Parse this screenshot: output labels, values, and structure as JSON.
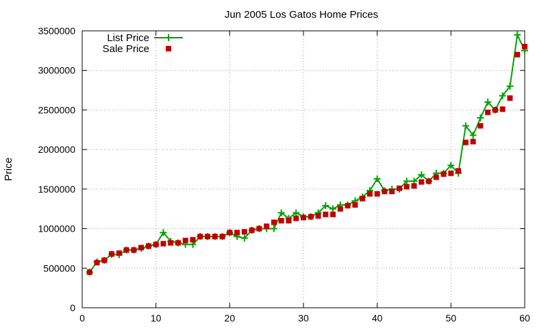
{
  "chart_data": {
    "type": "line",
    "title": "Jun 2005 Los Gatos Home Prices",
    "xlabel": "",
    "ylabel": "Price",
    "xlim": [
      0,
      60
    ],
    "ylim": [
      0,
      3500000
    ],
    "x_ticks": [
      0,
      10,
      20,
      30,
      40,
      50,
      60
    ],
    "y_ticks": [
      0,
      500000,
      1000000,
      1500000,
      2000000,
      2500000,
      3000000,
      3500000
    ],
    "x_tick_labels": [
      "0",
      "10",
      "20",
      "30",
      "40",
      "50",
      "60"
    ],
    "y_tick_labels": [
      "0",
      "500000",
      "1000000",
      "1500000",
      "2000000",
      "2500000",
      "3000000",
      "3500000"
    ],
    "grid": true,
    "legend_position": "top-left",
    "series": [
      {
        "name": "List Price",
        "style": "lines+points",
        "color": "#00a000",
        "x": [
          1,
          2,
          3,
          4,
          5,
          6,
          7,
          8,
          9,
          10,
          11,
          12,
          13,
          14,
          15,
          16,
          17,
          18,
          19,
          20,
          21,
          22,
          23,
          24,
          25,
          26,
          27,
          28,
          29,
          30,
          31,
          32,
          33,
          34,
          35,
          36,
          37,
          38,
          39,
          40,
          41,
          42,
          43,
          44,
          45,
          46,
          47,
          48,
          49,
          50,
          51,
          52,
          53,
          54,
          55,
          56,
          57,
          58,
          59,
          60
        ],
        "y": [
          450000,
          580000,
          600000,
          675000,
          670000,
          730000,
          730000,
          750000,
          780000,
          800000,
          950000,
          840000,
          820000,
          800000,
          800000,
          900000,
          900000,
          900000,
          900000,
          950000,
          900000,
          880000,
          980000,
          1000000,
          1000000,
          1000000,
          1200000,
          1130000,
          1200000,
          1150000,
          1150000,
          1200000,
          1290000,
          1250000,
          1300000,
          1300000,
          1350000,
          1400000,
          1480000,
          1630000,
          1480000,
          1500000,
          1500000,
          1600000,
          1600000,
          1680000,
          1600000,
          1700000,
          1700000,
          1800000,
          1700000,
          2300000,
          2180000,
          2400000,
          2600000,
          2500000,
          2680000,
          2800000,
          3450000,
          3250000
        ]
      },
      {
        "name": "Sale Price",
        "style": "points",
        "color": "#c00000",
        "x": [
          1,
          2,
          3,
          4,
          5,
          6,
          7,
          8,
          9,
          10,
          11,
          12,
          13,
          14,
          15,
          16,
          17,
          18,
          19,
          20,
          21,
          22,
          23,
          24,
          25,
          26,
          27,
          28,
          29,
          30,
          31,
          32,
          33,
          34,
          35,
          36,
          37,
          38,
          39,
          40,
          41,
          42,
          43,
          44,
          45,
          46,
          47,
          48,
          49,
          50,
          51,
          52,
          53,
          54,
          55,
          56,
          57,
          58,
          59,
          60
        ],
        "y": [
          450000,
          570000,
          600000,
          680000,
          690000,
          730000,
          730000,
          760000,
          780000,
          800000,
          810000,
          820000,
          820000,
          850000,
          860000,
          900000,
          900000,
          900000,
          900000,
          950000,
          950000,
          960000,
          980000,
          1000000,
          1030000,
          1080000,
          1100000,
          1100000,
          1130000,
          1140000,
          1150000,
          1160000,
          1180000,
          1180000,
          1250000,
          1290000,
          1300000,
          1380000,
          1440000,
          1440000,
          1470000,
          1470000,
          1510000,
          1530000,
          1540000,
          1590000,
          1600000,
          1650000,
          1690000,
          1700000,
          1730000,
          2090000,
          2100000,
          2300000,
          2470000,
          2500000,
          2510000,
          2650000,
          3200000,
          3300000
        ]
      }
    ]
  }
}
